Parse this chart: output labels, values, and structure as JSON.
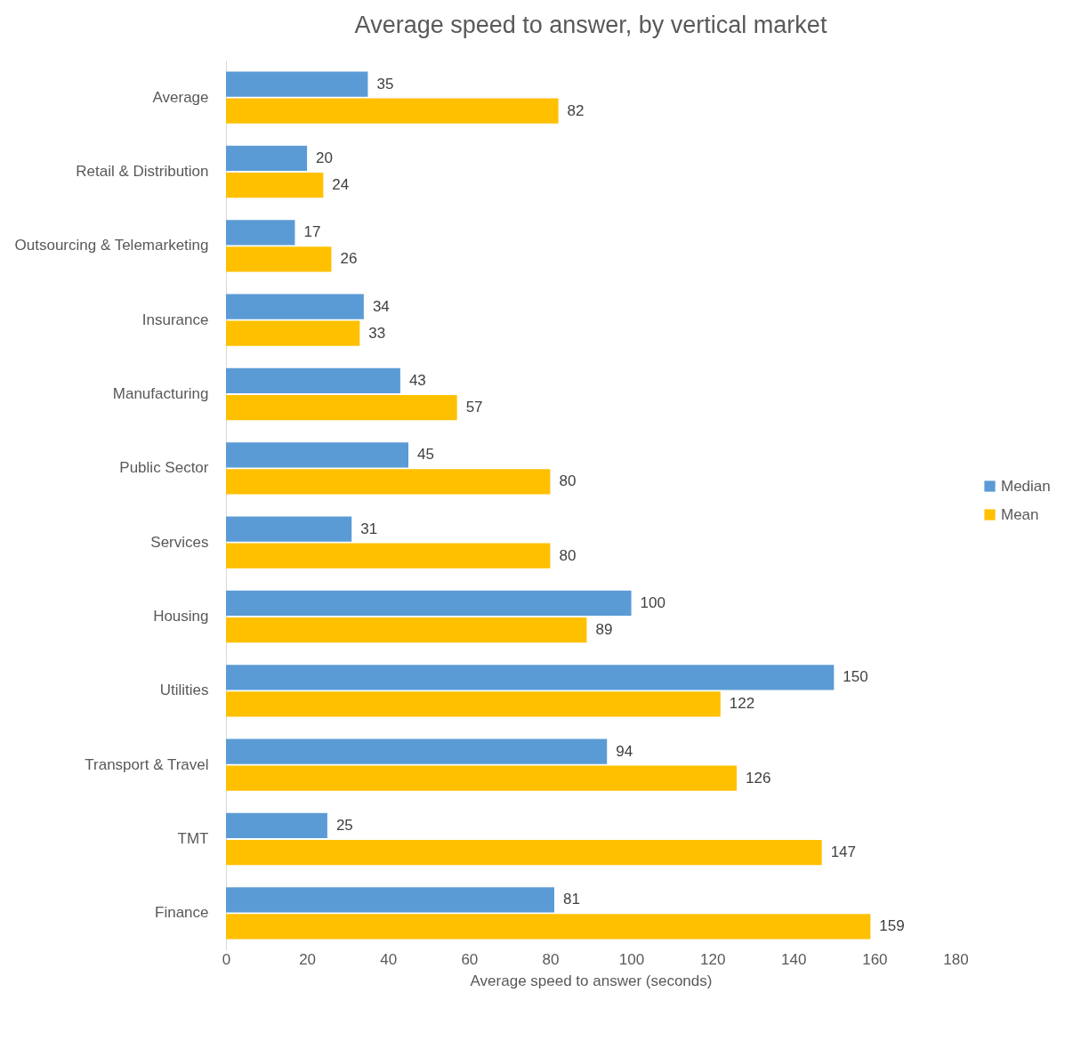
{
  "chart_data": {
    "type": "bar",
    "orientation": "horizontal",
    "title": "Average speed to answer, by vertical market",
    "xlabel": "Average speed to answer (seconds)",
    "categories": [
      "Average",
      "Retail & Distribution",
      "Outsourcing & Telemarketing",
      "Insurance",
      "Manufacturing",
      "Public Sector",
      "Services",
      "Housing",
      "Utilities",
      "Transport & Travel",
      "TMT",
      "Finance"
    ],
    "series": [
      {
        "name": "Median",
        "color": "#5b9bd5",
        "values": [
          35,
          20,
          17,
          34,
          43,
          45,
          31,
          100,
          150,
          94,
          25,
          81
        ]
      },
      {
        "name": "Mean",
        "color": "#ffc000",
        "values": [
          82,
          24,
          26,
          33,
          57,
          80,
          80,
          89,
          122,
          126,
          147,
          159
        ]
      }
    ],
    "xlim": [
      0,
      180
    ],
    "xticks": [
      0,
      20,
      40,
      60,
      80,
      100,
      120,
      140,
      160,
      180
    ],
    "data_labels": true,
    "legend": "right",
    "grid": false
  }
}
